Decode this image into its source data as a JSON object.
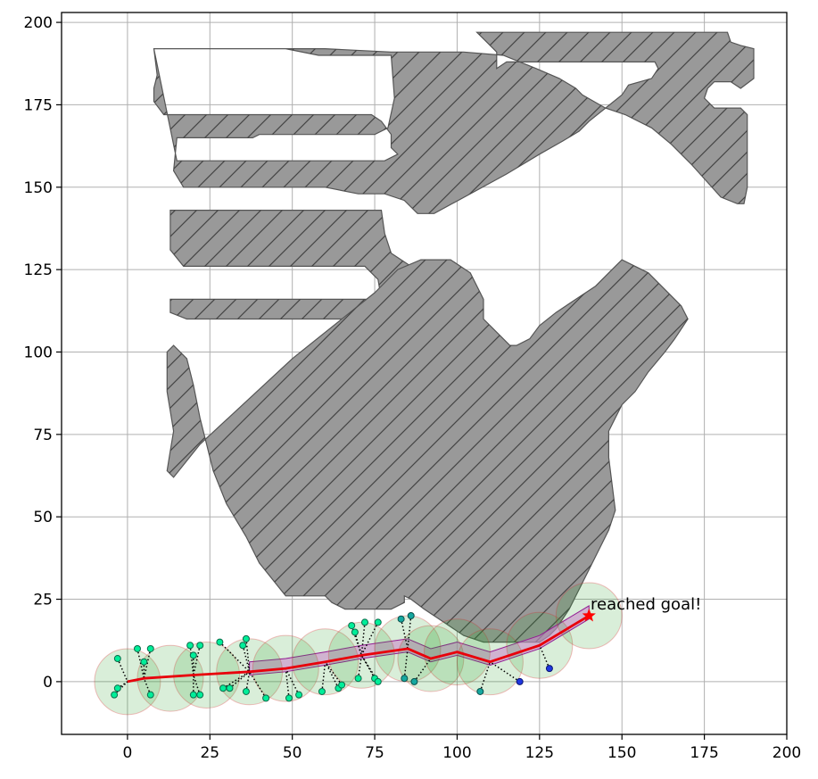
{
  "chart_data": {
    "type": "scatter",
    "title": "",
    "xlabel": "",
    "ylabel": "",
    "xlim": [
      -20,
      200
    ],
    "ylim": [
      -16,
      203
    ],
    "xticks": [
      0,
      25,
      50,
      75,
      100,
      125,
      150,
      175,
      200
    ],
    "yticks": [
      0,
      25,
      50,
      75,
      100,
      125,
      150,
      175,
      200
    ],
    "grid": true,
    "legend": "none",
    "colors": {
      "obstacle_fill": "#999999",
      "obstacle_edge": "#555555",
      "path": "#e8000b",
      "goal": "#ff0000",
      "circle_fill": "#2ca02c",
      "circle_edge": "#d62728",
      "swept_fill": "#ee88ee",
      "swept_edge": "#aa00aa",
      "tree_edge": "#000000"
    },
    "obstacles": [
      [
        [
          8,
          192
        ],
        [
          48,
          192
        ],
        [
          58,
          190
        ],
        [
          80,
          190
        ],
        [
          81,
          177
        ],
        [
          79,
          168
        ],
        [
          75,
          166
        ],
        [
          40,
          166
        ],
        [
          38,
          165
        ],
        [
          15,
          165
        ],
        [
          14,
          155
        ],
        [
          17,
          150
        ],
        [
          60,
          150
        ],
        [
          70,
          148
        ],
        [
          78,
          148
        ],
        [
          84,
          146
        ],
        [
          88,
          142
        ],
        [
          93,
          142
        ],
        [
          115,
          154
        ],
        [
          125,
          160
        ],
        [
          132,
          164
        ],
        [
          137,
          167
        ],
        [
          140,
          170
        ],
        [
          145,
          174
        ],
        [
          150,
          178
        ],
        [
          152,
          181
        ],
        [
          159,
          183
        ],
        [
          161,
          186
        ],
        [
          160,
          188
        ],
        [
          148,
          188
        ],
        [
          115,
          188
        ],
        [
          112,
          186
        ],
        [
          112,
          191
        ],
        [
          109,
          194
        ],
        [
          106,
          197
        ],
        [
          132,
          197
        ],
        [
          145,
          197
        ],
        [
          182,
          197
        ],
        [
          183,
          194
        ],
        [
          186,
          193
        ],
        [
          190,
          192
        ],
        [
          190,
          188
        ],
        [
          190,
          183
        ],
        [
          186,
          180
        ],
        [
          183,
          182
        ],
        [
          178,
          182
        ],
        [
          176,
          180
        ],
        [
          175,
          177
        ],
        [
          178,
          174
        ],
        [
          186,
          174
        ],
        [
          188,
          172
        ],
        [
          188,
          168
        ],
        [
          188,
          155
        ],
        [
          188,
          150
        ],
        [
          187,
          145
        ],
        [
          185,
          145
        ],
        [
          180,
          147
        ],
        [
          171,
          157
        ],
        [
          165,
          163
        ],
        [
          159,
          168
        ],
        [
          151,
          172
        ],
        [
          145,
          174
        ],
        [
          138,
          178
        ],
        [
          136,
          180
        ],
        [
          131,
          183
        ],
        [
          124,
          186
        ],
        [
          114,
          190
        ],
        [
          102,
          191
        ],
        [
          94,
          191
        ],
        [
          80,
          191
        ],
        [
          60,
          192
        ],
        [
          40,
          192
        ],
        [
          20,
          192
        ],
        [
          8,
          192
        ],
        [
          9,
          184
        ],
        [
          8,
          180
        ],
        [
          8,
          176
        ],
        [
          11,
          172
        ],
        [
          20,
          172
        ],
        [
          40,
          172
        ],
        [
          58,
          172
        ],
        [
          68,
          172
        ],
        [
          74,
          172
        ],
        [
          77,
          170
        ],
        [
          80,
          166
        ],
        [
          80,
          162
        ],
        [
          82,
          160
        ],
        [
          78,
          158
        ],
        [
          70,
          158
        ],
        [
          60,
          158
        ],
        [
          50,
          158
        ],
        [
          40,
          158
        ],
        [
          30,
          158
        ],
        [
          20,
          158
        ],
        [
          15,
          158
        ]
      ],
      [
        [
          13,
          143
        ],
        [
          77,
          143
        ],
        [
          78,
          136
        ],
        [
          80,
          130
        ],
        [
          86,
          126
        ],
        [
          86,
          120
        ],
        [
          82,
          116
        ],
        [
          83,
          112
        ],
        [
          84,
          110
        ],
        [
          18,
          110
        ],
        [
          13,
          112
        ],
        [
          13,
          116
        ],
        [
          17,
          116
        ],
        [
          60,
          116
        ],
        [
          70,
          116
        ],
        [
          77,
          116
        ],
        [
          76,
          122
        ],
        [
          72,
          126
        ],
        [
          17,
          126
        ],
        [
          13,
          131
        ],
        [
          13,
          143
        ]
      ],
      [
        [
          12,
          100
        ],
        [
          12,
          88
        ],
        [
          14,
          76
        ],
        [
          13,
          70
        ],
        [
          12,
          64
        ],
        [
          14,
          62
        ],
        [
          22,
          72
        ],
        [
          50,
          98
        ],
        [
          75,
          118
        ],
        [
          82,
          125
        ],
        [
          89,
          128
        ],
        [
          98,
          128
        ],
        [
          104,
          124
        ],
        [
          108,
          116
        ],
        [
          108,
          110
        ],
        [
          112,
          106
        ],
        [
          116,
          102
        ],
        [
          118,
          102
        ],
        [
          122,
          104
        ],
        [
          125,
          108
        ],
        [
          130,
          112
        ],
        [
          136,
          116
        ],
        [
          142,
          120
        ],
        [
          146,
          124
        ],
        [
          148,
          126
        ],
        [
          150,
          128
        ],
        [
          158,
          124
        ],
        [
          168,
          114
        ],
        [
          170,
          110
        ],
        [
          166,
          104
        ],
        [
          163,
          100
        ],
        [
          158,
          94
        ],
        [
          154,
          88
        ],
        [
          150,
          84
        ],
        [
          146,
          76
        ],
        [
          146,
          68
        ],
        [
          147,
          60
        ],
        [
          148,
          52
        ],
        [
          146,
          46
        ],
        [
          142,
          38
        ],
        [
          138,
          30
        ],
        [
          134,
          22
        ],
        [
          130,
          16
        ],
        [
          128,
          14
        ],
        [
          125,
          12
        ],
        [
          108,
          12
        ],
        [
          102,
          14
        ],
        [
          96,
          18
        ],
        [
          90,
          22
        ],
        [
          86,
          25
        ],
        [
          84,
          26
        ],
        [
          84,
          24
        ],
        [
          80,
          22
        ],
        [
          72,
          22
        ],
        [
          66,
          22
        ],
        [
          62,
          24
        ],
        [
          60,
          26
        ],
        [
          48,
          26
        ],
        [
          40,
          36
        ],
        [
          36,
          44
        ],
        [
          30,
          54
        ],
        [
          26,
          64
        ],
        [
          24,
          72
        ],
        [
          22,
          80
        ],
        [
          20,
          90
        ],
        [
          18,
          98
        ],
        [
          14,
          102
        ]
      ]
    ],
    "path": [
      [
        0,
        0
      ],
      [
        5,
        1
      ],
      [
        20,
        2
      ],
      [
        37,
        3
      ],
      [
        48,
        4
      ],
      [
        60,
        6
      ],
      [
        71,
        8
      ],
      [
        85,
        10
      ],
      [
        92,
        7
      ],
      [
        100,
        9
      ],
      [
        110,
        6
      ],
      [
        125,
        11
      ],
      [
        140,
        20
      ]
    ],
    "path_circles": [
      [
        0,
        0
      ],
      [
        13,
        1
      ],
      [
        24,
        2
      ],
      [
        37,
        3
      ],
      [
        48,
        4
      ],
      [
        60,
        6
      ],
      [
        71,
        8
      ],
      [
        85,
        10
      ],
      [
        92,
        7
      ],
      [
        100,
        9
      ],
      [
        110,
        6
      ],
      [
        125,
        11
      ],
      [
        140,
        20
      ]
    ],
    "tree_nodes_green": [
      [
        -4,
        -4
      ],
      [
        -3,
        -2
      ],
      [
        -3,
        7
      ],
      [
        3,
        10
      ],
      [
        5,
        6
      ],
      [
        7,
        10
      ],
      [
        7,
        -4
      ],
      [
        19,
        11
      ],
      [
        20,
        8
      ],
      [
        22,
        11
      ],
      [
        20,
        -4
      ],
      [
        22,
        -4
      ],
      [
        28,
        12
      ],
      [
        29,
        -2
      ],
      [
        31,
        -2
      ],
      [
        35,
        11
      ],
      [
        36,
        -3
      ],
      [
        36,
        13
      ],
      [
        42,
        -5
      ],
      [
        49,
        -5
      ],
      [
        52,
        -4
      ],
      [
        59,
        -3
      ],
      [
        64,
        -2
      ],
      [
        65,
        -1
      ],
      [
        68,
        17
      ],
      [
        69,
        15
      ],
      [
        72,
        18
      ],
      [
        76,
        18
      ],
      [
        70,
        1
      ],
      [
        75,
        1
      ],
      [
        76,
        0
      ]
    ],
    "tree_nodes_teal": [
      [
        83,
        19
      ],
      [
        84,
        1
      ],
      [
        86,
        20
      ],
      [
        87,
        0
      ],
      [
        107,
        -3
      ]
    ],
    "tree_nodes_blue": [
      [
        119,
        0
      ],
      [
        128,
        4
      ]
    ],
    "goal": [
      140,
      20
    ],
    "annotation": "reached goal!"
  }
}
